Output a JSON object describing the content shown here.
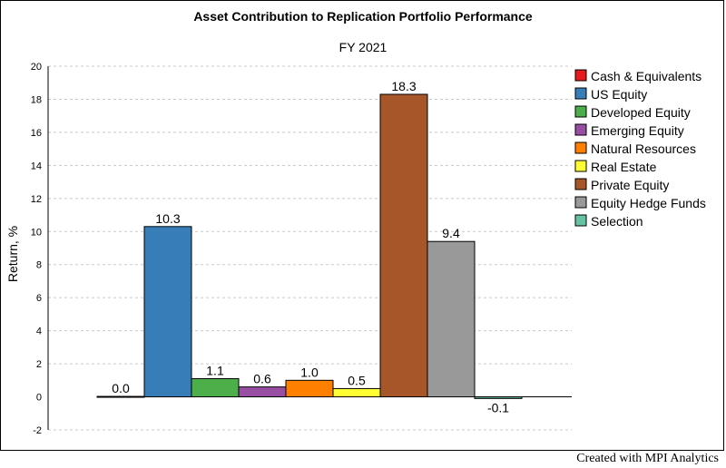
{
  "chart_data": {
    "type": "bar",
    "title": "Asset Contribution to Replication Portfolio Performance",
    "subtitle": "FY 2021",
    "ylabel": "Return, %",
    "xlabel": "",
    "ylim": [
      -2,
      20
    ],
    "yticks": [
      -2,
      0,
      2,
      4,
      6,
      8,
      10,
      12,
      14,
      16,
      18,
      20
    ],
    "grid": true,
    "legend_position": "right",
    "series": [
      {
        "name": "Cash & Equivalents",
        "value": 0.0,
        "label": "0.0",
        "color": "#e41a1c"
      },
      {
        "name": "US Equity",
        "value": 10.3,
        "label": "10.3",
        "color": "#377eb8"
      },
      {
        "name": "Developed Equity",
        "value": 1.1,
        "label": "1.1",
        "color": "#4daf4a"
      },
      {
        "name": "Emerging Equity",
        "value": 0.6,
        "label": "0.6",
        "color": "#984ea3"
      },
      {
        "name": "Natural Resources",
        "value": 1.0,
        "label": "1.0",
        "color": "#ff7f00"
      },
      {
        "name": "Real Estate",
        "value": 0.5,
        "label": "0.5",
        "color": "#ffff33"
      },
      {
        "name": "Private Equity",
        "value": 18.3,
        "label": "18.3",
        "color": "#a65628"
      },
      {
        "name": "Equity Hedge Funds",
        "value": 9.4,
        "label": "9.4",
        "color": "#999999"
      },
      {
        "name": "Selection",
        "value": -0.1,
        "label": "-0.1",
        "color": "#66c2a5"
      }
    ]
  },
  "footer": "Created with MPI Analytics"
}
